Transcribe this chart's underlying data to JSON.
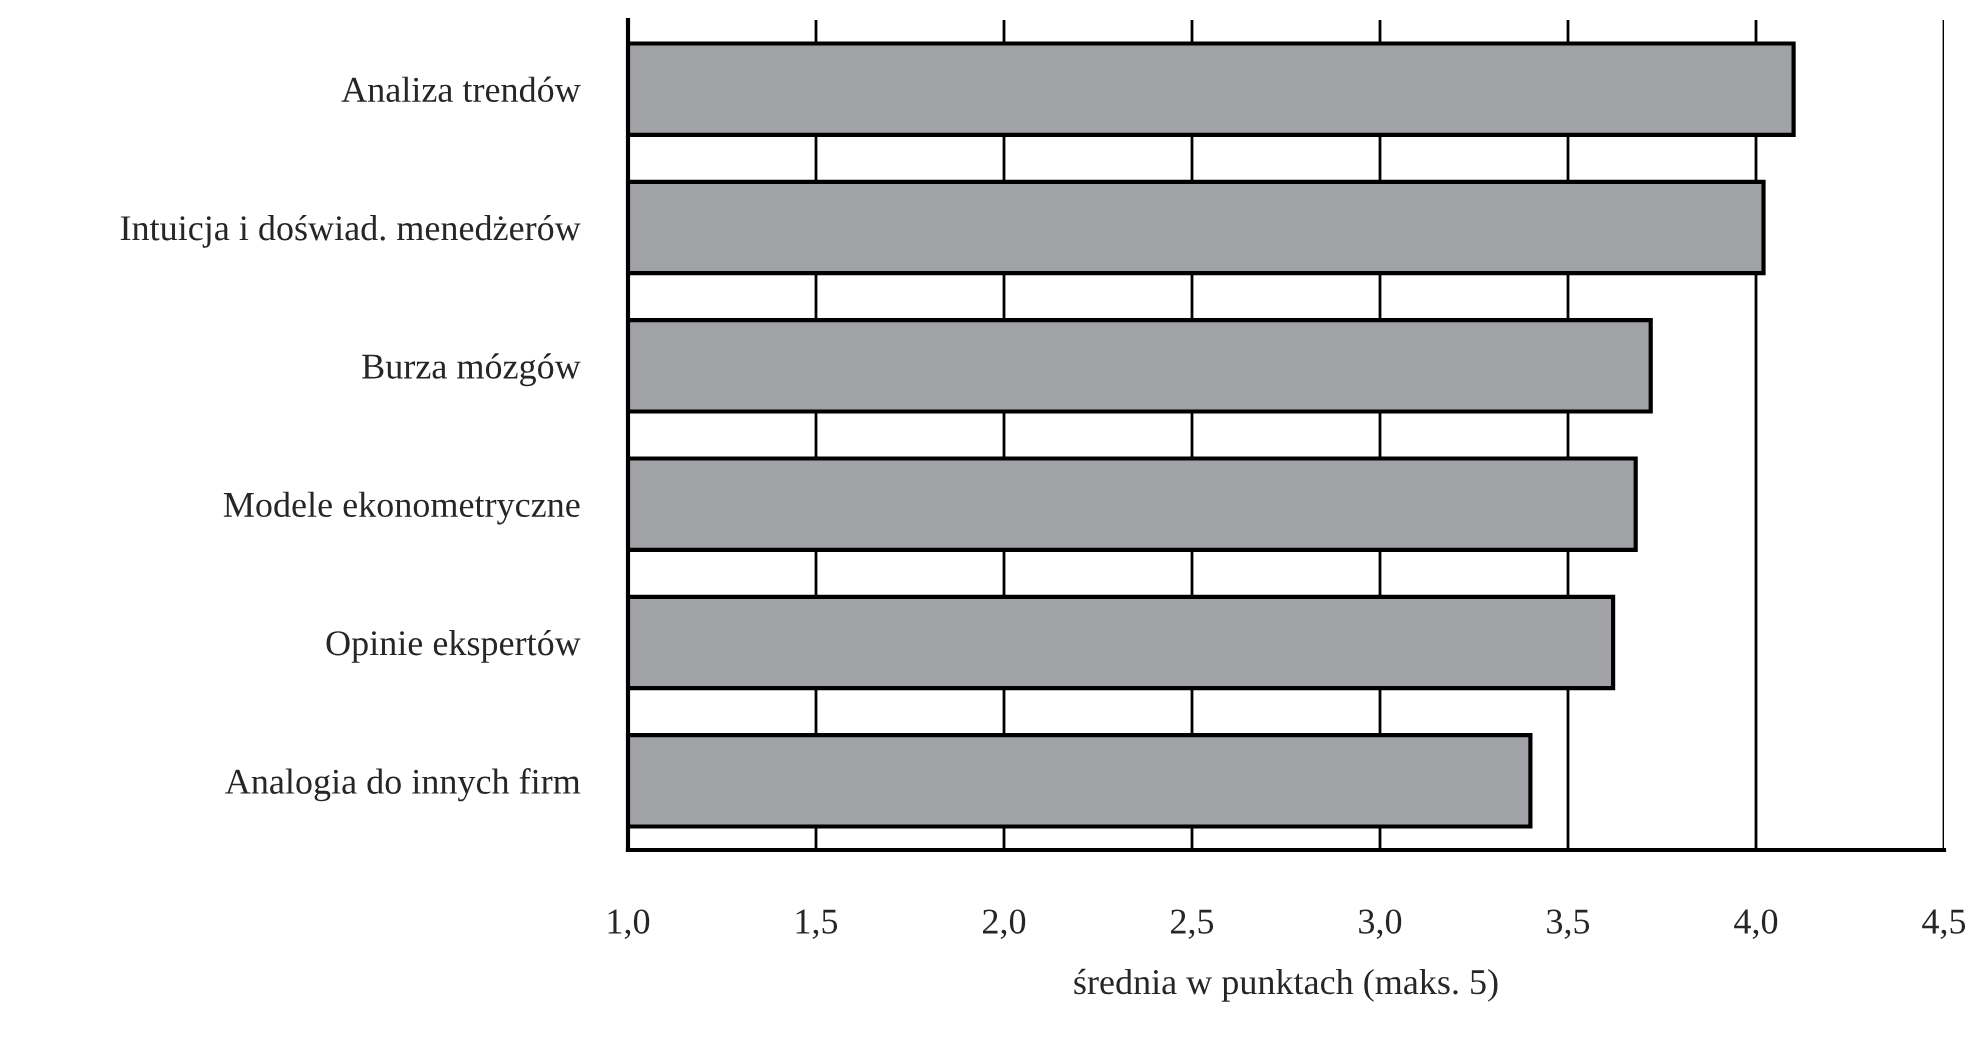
{
  "chart_data": {
    "type": "bar",
    "orientation": "horizontal",
    "categories": [
      "Analiza trendów",
      "Intuicja i doświad. menedżerów",
      "Burza mózgów",
      "Modele ekonometryczne",
      "Opinie ekspertów",
      "Analogia do innych firm"
    ],
    "values": [
      4.1,
      4.02,
      3.72,
      3.68,
      3.62,
      3.4
    ],
    "color": "#a0a2a5",
    "xlabel": "średnia w punktach (maks. 5)",
    "xlim": [
      1.0,
      4.5
    ],
    "xticks": [
      {
        "value": 1.0,
        "label": "1,0"
      },
      {
        "value": 1.5,
        "label": "1,5"
      },
      {
        "value": 2.0,
        "label": "2,0"
      },
      {
        "value": 2.5,
        "label": "2,5"
      },
      {
        "value": 3.0,
        "label": "3,0"
      },
      {
        "value": 3.5,
        "label": "3,5"
      },
      {
        "value": 4.0,
        "label": "4,0"
      },
      {
        "value": 4.5,
        "label": "4,5"
      }
    ],
    "grid": "x"
  }
}
